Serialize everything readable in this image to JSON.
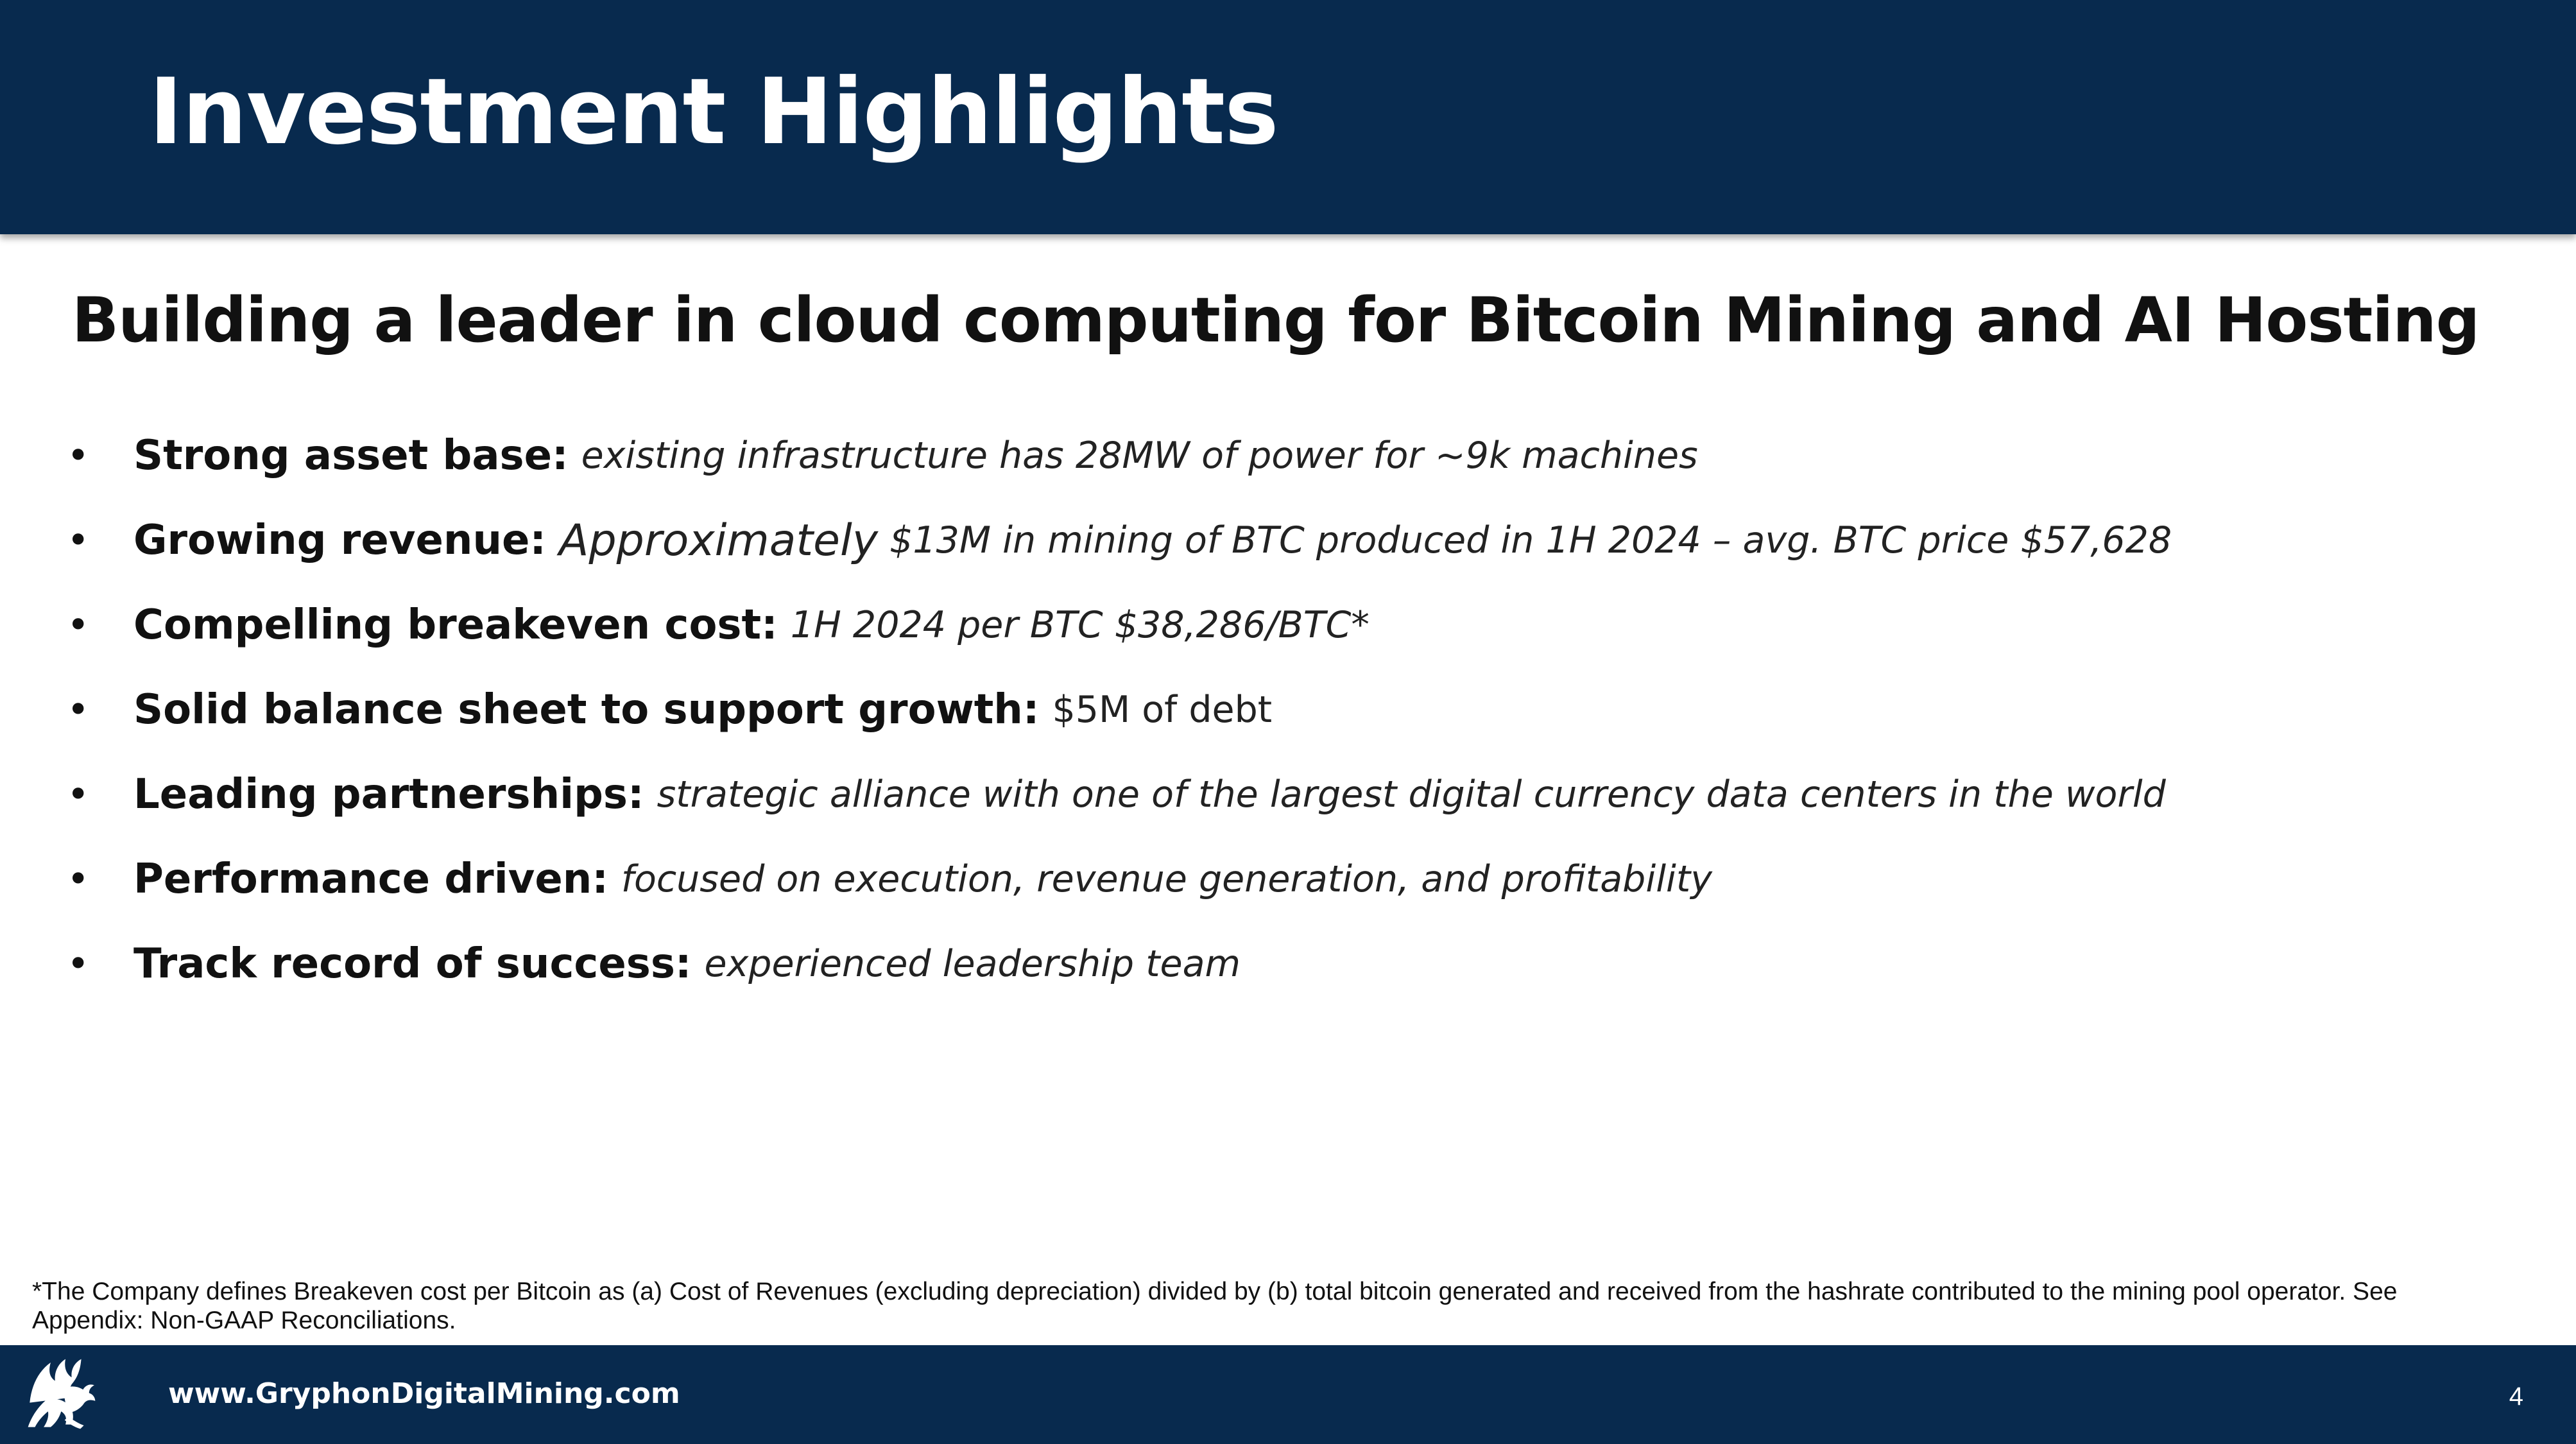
{
  "header": {
    "title": "Investment Highlights"
  },
  "subtitle": "Building a leader in cloud computing for Bitcoin Mining and AI Hosting",
  "highlights": [
    {
      "label": "Strong asset base:",
      "text": "existing infrastructure has 28MW of power for ~9k machines"
    },
    {
      "label": "Growing revenue:",
      "lead": "Approximately",
      "text": "$13M in mining of BTC produced in 1H 2024 – avg. BTC price $57,628"
    },
    {
      "label": "Compelling breakeven cost:",
      "text": "1H 2024 per BTC $38,286/BTC*"
    },
    {
      "label": "Solid balance sheet to support growth:",
      "text": "$5M of debt"
    },
    {
      "label": "Leading partnerships:",
      "text": "strategic alliance with one of the largest digital currency data centers in the world"
    },
    {
      "label": "Performance driven:",
      "text": "focused on execution, revenue generation, and profitability"
    },
    {
      "label": "Track record of success:",
      "text": "experienced leadership team"
    }
  ],
  "bullet_char": "•",
  "footnote": "*The Company defines Breakeven cost per Bitcoin as (a) Cost of Revenues (excluding depreciation) divided by (b) total bitcoin generated and received from the hashrate contributed to the mining pool operator.  See Appendix: Non-GAAP Reconciliations.",
  "footer": {
    "website": "www.GryphonDigitalMining.com",
    "page_number": "4",
    "logo_icon": "griffin-logo-icon"
  },
  "colors": {
    "navy": "#082a4e",
    "text": "#111111",
    "white": "#ffffff"
  }
}
